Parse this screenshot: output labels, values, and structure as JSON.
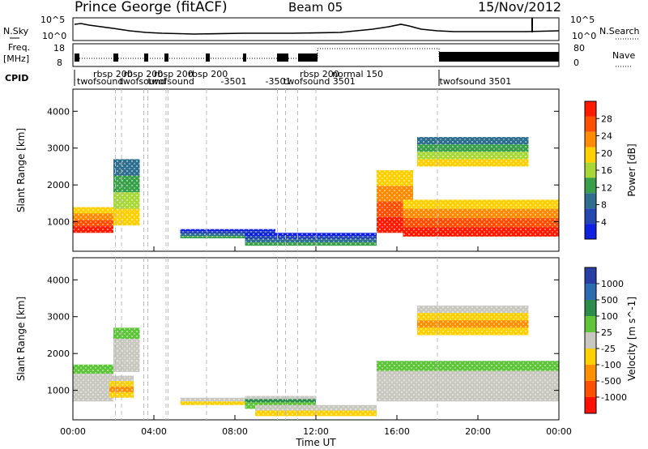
{
  "header": {
    "station": "Prince George (fitACF)",
    "beam": "Beam 05",
    "date": "15/Nov/2012"
  },
  "sidebar_labels": {
    "nsky": "N.Sky",
    "freq": "Freq.",
    "freq_unit": "[MHz]",
    "cpid": "CPID",
    "nsearch": "N.Search",
    "nave": "Nave"
  },
  "nsky_axis": {
    "top": "10^5",
    "bottom": "10^0"
  },
  "freq_axis": {
    "top": "18",
    "bottom": "8"
  },
  "nave_axis": {
    "top": "80",
    "bottom": "0"
  },
  "cpid_labels": [
    {
      "text": "rbsp 200",
      "h": 1.0,
      "row": 0
    },
    {
      "text": "twofsound",
      "h": 0.2,
      "row": 1
    },
    {
      "text": "rbsp 200",
      "h": 2.5,
      "row": 0
    },
    {
      "text": "twofsound",
      "h": 2.3,
      "row": 1
    },
    {
      "text": "rbsp 200",
      "h": 4.0,
      "row": 0
    },
    {
      "text": "twofsound",
      "h": 3.7,
      "row": 1
    },
    {
      "text": "rbsp 200",
      "h": 5.7,
      "row": 0
    },
    {
      "text": "-3501",
      "h": 7.3,
      "row": 1
    },
    {
      "text": "-3501",
      "h": 9.5,
      "row": 1
    },
    {
      "text": "rbsp 200",
      "h": 11.2,
      "row": 0
    },
    {
      "text": "normal 150",
      "h": 12.8,
      "row": 0
    },
    {
      "text": "twofsound 3501",
      "h": 10.4,
      "row": 1
    },
    {
      "text": "twofsound 3501",
      "h": 18.1,
      "row": 1
    }
  ],
  "xaxis": {
    "ticks": [
      "00:00",
      "04:00",
      "08:00",
      "12:00",
      "16:00",
      "20:00",
      "00:00"
    ],
    "label": "Time UT"
  },
  "chart_data": [
    {
      "type": "heatmap",
      "title": "",
      "ylabel": "Slant Range [km]",
      "xlabel": "",
      "xlim": [
        0,
        24
      ],
      "ylim": [
        200,
        4600
      ],
      "yticks": [
        1000,
        2000,
        3000,
        4000
      ],
      "colorbar": {
        "label": "Power [dB]",
        "ticks": [
          "28",
          "24",
          "20",
          "16",
          "12",
          "8",
          "4"
        ],
        "colors": [
          "#ff1a00",
          "#ff5000",
          "#ff8c00",
          "#ffd000",
          "#a8d838",
          "#38a048",
          "#2e6e8e",
          "#2448b0",
          "#1020e0"
        ]
      },
      "regions": [
        {
          "t": [
            0.0,
            2.0
          ],
          "r": [
            700,
            1400
          ],
          "level": "high"
        },
        {
          "t": [
            2.0,
            3.3
          ],
          "r": [
            900,
            2700
          ],
          "level": "mid"
        },
        {
          "t": [
            5.3,
            10.0
          ],
          "r": [
            550,
            800
          ],
          "level": "low"
        },
        {
          "t": [
            8.5,
            15.0
          ],
          "r": [
            350,
            700
          ],
          "level": "low"
        },
        {
          "t": [
            15.0,
            16.8
          ],
          "r": [
            700,
            2400
          ],
          "level": "high"
        },
        {
          "t": [
            16.3,
            24.0
          ],
          "r": [
            600,
            1600
          ],
          "level": "high"
        },
        {
          "t": [
            17.0,
            22.5
          ],
          "r": [
            2500,
            3300
          ],
          "level": "mid"
        }
      ]
    },
    {
      "type": "heatmap",
      "title": "",
      "ylabel": "Slant Range [km]",
      "xlabel": "Time UT",
      "xlim": [
        0,
        24
      ],
      "ylim": [
        200,
        4600
      ],
      "yticks": [
        1000,
        2000,
        3000,
        4000
      ],
      "colorbar": {
        "label": "Velocity [m s^-1]",
        "ticks": [
          "1000",
          "500",
          "100",
          "25",
          "-25",
          "-100",
          "-500",
          "-1000"
        ],
        "colors": [
          "#2a3ea8",
          "#2c6cb4",
          "#2c8c4c",
          "#5ec43a",
          "#c8c8c0",
          "#ffd000",
          "#ff9000",
          "#ff5000",
          "#ff1000"
        ]
      },
      "regions": [
        {
          "t": [
            0.0,
            2.0
          ],
          "r": [
            700,
            1700
          ],
          "level": "grey"
        },
        {
          "t": [
            1.8,
            3.0
          ],
          "r": [
            800,
            1400
          ],
          "level": "orange"
        },
        {
          "t": [
            2.0,
            3.3
          ],
          "r": [
            1500,
            2700
          ],
          "level": "grey"
        },
        {
          "t": [
            5.3,
            8.5
          ],
          "r": [
            600,
            800
          ],
          "level": "yellow"
        },
        {
          "t": [
            8.5,
            12.0
          ],
          "r": [
            500,
            850
          ],
          "level": "green"
        },
        {
          "t": [
            9.0,
            15.0
          ],
          "r": [
            300,
            600
          ],
          "level": "yellow"
        },
        {
          "t": [
            15.0,
            24.0
          ],
          "r": [
            700,
            1800
          ],
          "level": "grey"
        },
        {
          "t": [
            17.0,
            22.5
          ],
          "r": [
            2500,
            3300
          ],
          "level": "orange"
        }
      ]
    }
  ]
}
